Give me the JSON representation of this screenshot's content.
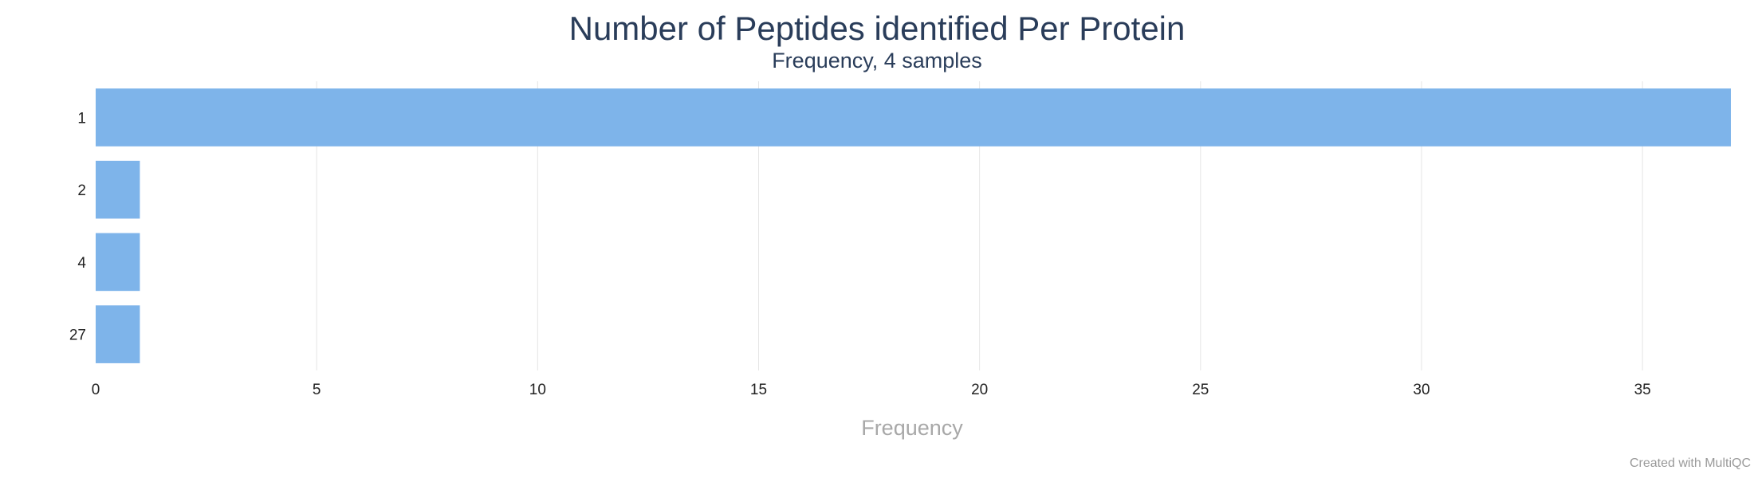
{
  "chart_data": {
    "type": "bar",
    "orientation": "horizontal",
    "title": "Number of Peptides identified Per Protein",
    "subtitle": "Frequency, 4 samples",
    "xlabel": "Frequency",
    "ylabel": "",
    "categories": [
      "1",
      "2",
      "4",
      "27"
    ],
    "values": [
      37,
      1,
      1,
      1
    ],
    "xlim": [
      0,
      37
    ],
    "xticks": [
      "0",
      "5",
      "10",
      "15",
      "20",
      "25",
      "30",
      "35"
    ],
    "grid": true,
    "legend": "none",
    "bar_color": "#7eb4ea"
  },
  "credit": "Created with MultiQC"
}
